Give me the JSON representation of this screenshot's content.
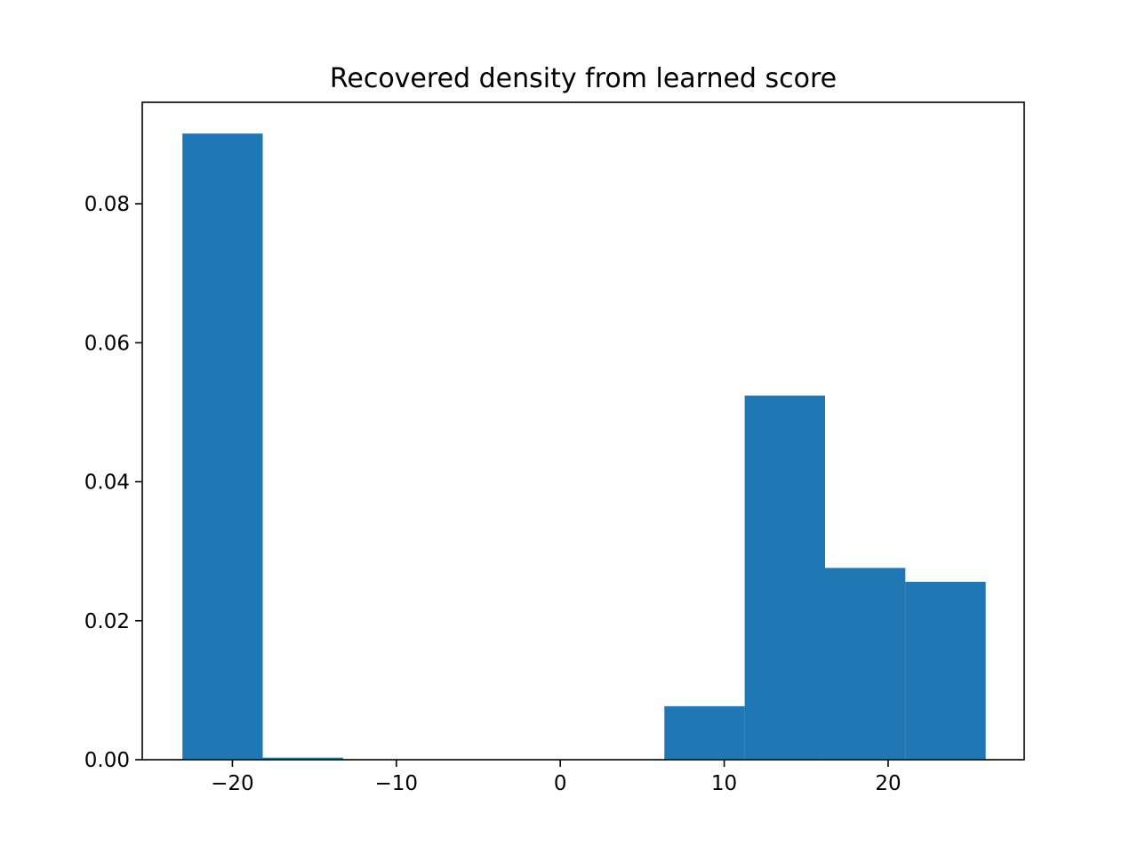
{
  "chart_data": {
    "type": "histogram",
    "title": "Recovered density from learned score",
    "xlabel": "",
    "ylabel": "",
    "xlim": [
      -25.5,
      28.3
    ],
    "ylim": [
      0,
      0.0946
    ],
    "xticks": [
      -20,
      -10,
      0,
      10,
      20
    ],
    "xtick_labels": [
      "−20",
      "−10",
      "0",
      "10",
      "20"
    ],
    "yticks": [
      0.0,
      0.02,
      0.04,
      0.06,
      0.08
    ],
    "ytick_labels": [
      "0.00",
      "0.02",
      "0.04",
      "0.06",
      "0.08"
    ],
    "bar_color": "#1f77b4",
    "bins": [
      {
        "x0": -23.05,
        "x1": -18.15,
        "density": 0.0901
      },
      {
        "x0": -18.15,
        "x1": -13.25,
        "density": 0.0003
      },
      {
        "x0": -13.25,
        "x1": -8.35,
        "density": 0.0
      },
      {
        "x0": -8.35,
        "x1": -3.45,
        "density": 0.0
      },
      {
        "x0": -3.45,
        "x1": 1.45,
        "density": 0.0
      },
      {
        "x0": 1.45,
        "x1": 6.35,
        "density": 0.0
      },
      {
        "x0": 6.35,
        "x1": 11.25,
        "density": 0.0077
      },
      {
        "x0": 11.25,
        "x1": 16.15,
        "density": 0.0524
      },
      {
        "x0": 16.15,
        "x1": 21.05,
        "density": 0.0276
      },
      {
        "x0": 21.05,
        "x1": 25.95,
        "density": 0.0256
      }
    ],
    "grid": false,
    "legend": "none"
  }
}
